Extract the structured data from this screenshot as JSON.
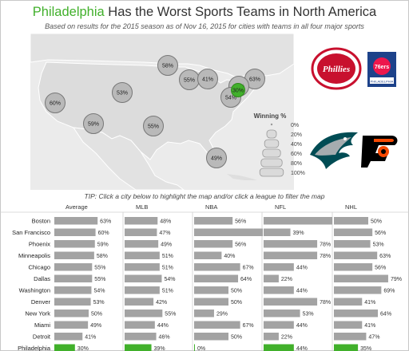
{
  "header": {
    "title_accent": "Philadelphia",
    "title_rest": " Has the Worst Sports Teams in North America",
    "subtitle": "Based on results for the 2015 season as of Nov 16, 2015 for cities with teams in all four major sports"
  },
  "tip": "TIP: Click a city below to highlight the map and/or click a league to filter the map",
  "map": {
    "markers": [
      {
        "label": "60%",
        "value": 60
      },
      {
        "label": "59%",
        "value": 59
      },
      {
        "label": "53%",
        "value": 53
      },
      {
        "label": "58%",
        "value": 58
      },
      {
        "label": "55%",
        "value": 55
      },
      {
        "label": "41%",
        "value": 41
      },
      {
        "label": "55%",
        "value": 55
      },
      {
        "label": "63%",
        "value": 63
      },
      {
        "label": "50%",
        "value": 50
      },
      {
        "label": "54%",
        "value": 54
      },
      {
        "label": "30%",
        "value": 30,
        "highlight": true
      },
      {
        "label": "49%",
        "value": 49
      }
    ],
    "legend": {
      "title": "Winning %",
      "labels": [
        "0%",
        "20%",
        "40%",
        "60%",
        "80%",
        "100%"
      ]
    }
  },
  "logos": {
    "phillies": "Phillies",
    "sixers_76": "76ers",
    "sixers_text": "PHILADELPHIA"
  },
  "colors": {
    "accent": "#41b02b",
    "bar": "#a3a3a3",
    "bubble": "#b9b9b9",
    "land": "#e2e2e2"
  },
  "chart_data": {
    "type": "bar",
    "columns": [
      "Average",
      "MLB",
      "NBA",
      "NFL",
      "NHL"
    ],
    "categories": [
      "Boston",
      "San Francisco",
      "Phoenix",
      "Minneapolis",
      "Chicago",
      "Dallas",
      "Washington",
      "Denver",
      "New York",
      "Miami",
      "Detroit",
      "Philadelphia"
    ],
    "highlight": "Philadelphia",
    "xlim": [
      0,
      100
    ],
    "series": [
      {
        "name": "Average",
        "values": [
          63,
          60,
          59,
          58,
          55,
          55,
          54,
          53,
          50,
          49,
          41,
          30
        ]
      },
      {
        "name": "MLB",
        "values": [
          48,
          47,
          49,
          51,
          51,
          54,
          51,
          42,
          55,
          44,
          46,
          39
        ]
      },
      {
        "name": "NBA",
        "values": [
          56,
          100,
          56,
          40,
          67,
          64,
          50,
          50,
          29,
          67,
          50,
          0
        ]
      },
      {
        "name": "NFL",
        "values": [
          100,
          39,
          78,
          78,
          44,
          22,
          44,
          78,
          53,
          44,
          22,
          44
        ]
      },
      {
        "name": "NHL",
        "values": [
          50,
          56,
          53,
          63,
          56,
          79,
          69,
          41,
          64,
          41,
          47,
          35
        ]
      }
    ]
  }
}
